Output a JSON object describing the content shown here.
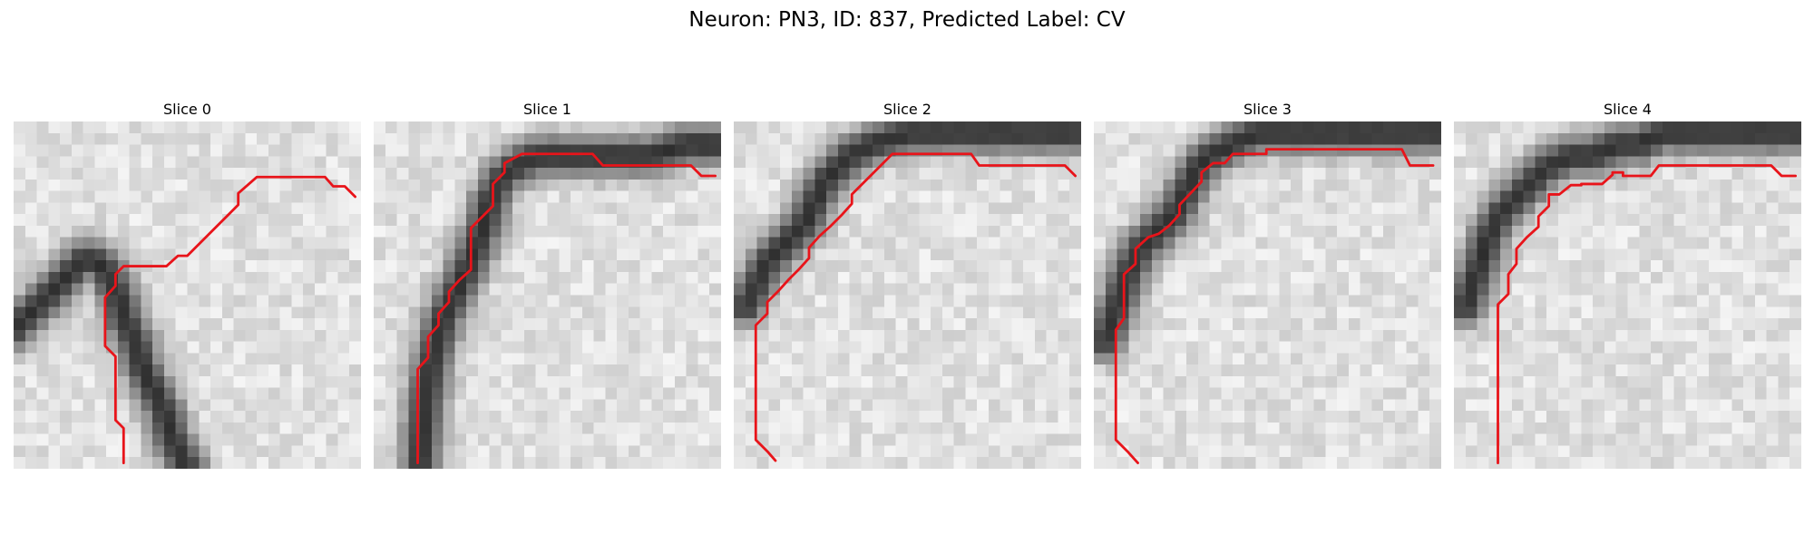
{
  "figure": {
    "title": "Neuron: PN3, ID: 837, Predicted Label: CV"
  },
  "colors": {
    "contour": "#e8141a",
    "image_colormap": "grayscale"
  },
  "image_grid": {
    "rows": 30,
    "cols": 30
  },
  "panels": [
    {
      "title": "Slice 0",
      "membrane_path": [
        [
          0,
          18
        ],
        [
          1,
          17
        ],
        [
          2,
          16
        ],
        [
          3,
          15
        ],
        [
          4,
          14
        ],
        [
          5,
          13
        ],
        [
          6,
          12
        ],
        [
          7,
          12
        ],
        [
          7.5,
          12.5
        ],
        [
          8,
          13
        ],
        [
          8.5,
          14
        ],
        [
          9,
          15
        ],
        [
          9.3,
          16
        ],
        [
          9.5,
          17
        ],
        [
          10,
          18
        ],
        [
          10.5,
          19
        ],
        [
          10.8,
          20
        ],
        [
          11,
          21
        ],
        [
          11.5,
          22
        ],
        [
          12,
          23
        ],
        [
          12.5,
          24
        ],
        [
          13,
          25
        ],
        [
          13.3,
          26
        ],
        [
          13.5,
          27
        ],
        [
          14,
          28
        ],
        [
          14.5,
          29
        ],
        [
          15,
          30
        ]
      ],
      "contour": [
        [
          9.5,
          29.5
        ],
        [
          9.5,
          26.5
        ],
        [
          8.8,
          25.8
        ],
        [
          8.8,
          20.3
        ],
        [
          7.9,
          19.4
        ],
        [
          7.9,
          15.2
        ],
        [
          8.8,
          14.2
        ],
        [
          8.8,
          13.2
        ],
        [
          9.5,
          12.5
        ],
        [
          13.2,
          12.5
        ],
        [
          14.2,
          11.6
        ],
        [
          15,
          11.6
        ],
        [
          19.4,
          7.2
        ],
        [
          19.4,
          6.2
        ],
        [
          21,
          4.8
        ],
        [
          26.9,
          4.8
        ],
        [
          27.6,
          5.6
        ],
        [
          28.6,
          5.6
        ],
        [
          29.5,
          6.5
        ]
      ]
    },
    {
      "title": "Slice 1",
      "membrane_path": [
        [
          4,
          30
        ],
        [
          4.2,
          27
        ],
        [
          4.5,
          24
        ],
        [
          5,
          21
        ],
        [
          5.5,
          19
        ],
        [
          6,
          17
        ],
        [
          7,
          15
        ],
        [
          8,
          13
        ],
        [
          8.8,
          11
        ],
        [
          9.5,
          9
        ],
        [
          10,
          7
        ],
        [
          11,
          5
        ],
        [
          12,
          4
        ],
        [
          14,
          3
        ],
        [
          17,
          3
        ],
        [
          20,
          3
        ],
        [
          24,
          3
        ],
        [
          27,
          2
        ],
        [
          30,
          2
        ]
      ],
      "contour": [
        [
          3.8,
          29.5
        ],
        [
          3.8,
          21.4
        ],
        [
          4.7,
          20.4
        ],
        [
          4.7,
          18.6
        ],
        [
          5.6,
          17.6
        ],
        [
          5.6,
          16.6
        ],
        [
          6.5,
          15.6
        ],
        [
          6.5,
          14.7
        ],
        [
          7.4,
          13.7
        ],
        [
          8.4,
          12.8
        ],
        [
          8.4,
          9.2
        ],
        [
          10.3,
          7.3
        ],
        [
          10.3,
          5.4
        ],
        [
          11.3,
          4.4
        ],
        [
          11.3,
          3.6
        ],
        [
          12.8,
          2.8
        ],
        [
          18.9,
          2.8
        ],
        [
          19.8,
          3.8
        ],
        [
          27.4,
          3.8
        ],
        [
          28.3,
          4.7
        ],
        [
          29.5,
          4.7
        ]
      ]
    },
    {
      "title": "Slice 2",
      "membrane_path": [
        [
          1,
          16
        ],
        [
          2,
          14
        ],
        [
          3,
          12
        ],
        [
          4,
          11
        ],
        [
          5,
          10
        ],
        [
          6,
          9
        ],
        [
          7,
          7
        ],
        [
          8,
          5
        ],
        [
          9,
          4
        ],
        [
          10,
          3
        ],
        [
          12,
          2
        ],
        [
          15,
          1
        ],
        [
          18,
          1
        ],
        [
          21,
          1
        ],
        [
          24,
          1
        ],
        [
          27,
          1
        ],
        [
          30,
          1
        ]
      ],
      "contour": [
        [
          3.6,
          29.3
        ],
        [
          2.9,
          28.5
        ],
        [
          1.9,
          27.5
        ],
        [
          1.9,
          17.6
        ],
        [
          2.9,
          16.6
        ],
        [
          2.9,
          15.6
        ],
        [
          3.8,
          14.7
        ],
        [
          4.7,
          13.7
        ],
        [
          5.6,
          12.8
        ],
        [
          6.5,
          11.8
        ],
        [
          6.5,
          10.9
        ],
        [
          7.4,
          9.9
        ],
        [
          8.4,
          9.0
        ],
        [
          9.3,
          8.1
        ],
        [
          10.2,
          7.1
        ],
        [
          10.2,
          6.3
        ],
        [
          13.7,
          2.8
        ],
        [
          20.5,
          2.8
        ],
        [
          21.2,
          3.8
        ],
        [
          28.6,
          3.8
        ],
        [
          29.5,
          4.7
        ]
      ]
    },
    {
      "title": "Slice 3",
      "membrane_path": [
        [
          1,
          19
        ],
        [
          2,
          16
        ],
        [
          3,
          13
        ],
        [
          4,
          11
        ],
        [
          5,
          10
        ],
        [
          6,
          9
        ],
        [
          7,
          8
        ],
        [
          8,
          6
        ],
        [
          9,
          4
        ],
        [
          10,
          3
        ],
        [
          12,
          2
        ],
        [
          14,
          1
        ],
        [
          17,
          1
        ],
        [
          20,
          1
        ],
        [
          24,
          1
        ],
        [
          27,
          1
        ],
        [
          30,
          1
        ]
      ],
      "contour": [
        [
          3.8,
          29.5
        ],
        [
          2.9,
          28.5
        ],
        [
          1.9,
          27.5
        ],
        [
          1.9,
          18.0
        ],
        [
          2.6,
          17.0
        ],
        [
          2.6,
          13.2
        ],
        [
          3.6,
          12.3
        ],
        [
          3.6,
          11.0
        ],
        [
          4.7,
          10.0
        ],
        [
          5.6,
          9.7
        ],
        [
          6.5,
          9.0
        ],
        [
          7.4,
          8.0
        ],
        [
          7.4,
          7.2
        ],
        [
          9.3,
          5.2
        ],
        [
          9.3,
          4.4
        ],
        [
          10.3,
          3.6
        ],
        [
          11.3,
          3.6
        ],
        [
          12.0,
          2.8
        ],
        [
          14.9,
          2.8
        ],
        [
          14.9,
          2.4
        ],
        [
          26.6,
          2.4
        ],
        [
          27.3,
          3.8
        ],
        [
          29.3,
          3.8
        ]
      ]
    },
    {
      "title": "Slice 4",
      "membrane_path": [
        [
          1,
          16
        ],
        [
          2,
          13
        ],
        [
          3,
          10
        ],
        [
          4,
          8
        ],
        [
          5,
          7
        ],
        [
          6,
          6
        ],
        [
          7,
          5
        ],
        [
          8,
          4
        ],
        [
          10,
          3
        ],
        [
          12,
          3
        ],
        [
          14,
          2
        ],
        [
          16,
          2
        ],
        [
          18,
          1
        ],
        [
          21,
          1
        ],
        [
          24,
          1
        ],
        [
          27,
          1
        ],
        [
          30,
          1
        ]
      ],
      "contour": [
        [
          3.8,
          29.5
        ],
        [
          3.8,
          15.8
        ],
        [
          4.7,
          14.9
        ],
        [
          4.7,
          13.2
        ],
        [
          5.4,
          12.3
        ],
        [
          5.4,
          11.0
        ],
        [
          6.3,
          10.0
        ],
        [
          7.3,
          9.1
        ],
        [
          7.3,
          8.2
        ],
        [
          8.2,
          7.3
        ],
        [
          8.2,
          6.3
        ],
        [
          9.1,
          6.3
        ],
        [
          10.1,
          5.5
        ],
        [
          11.0,
          5.5
        ],
        [
          11.0,
          5.4
        ],
        [
          12.8,
          5.4
        ],
        [
          13.7,
          4.6
        ],
        [
          13.7,
          4.4
        ],
        [
          14.6,
          4.4
        ],
        [
          14.6,
          4.7
        ],
        [
          17.0,
          4.7
        ],
        [
          17.7,
          3.8
        ],
        [
          27.4,
          3.8
        ],
        [
          28.3,
          4.7
        ],
        [
          29.5,
          4.7
        ]
      ]
    }
  ]
}
